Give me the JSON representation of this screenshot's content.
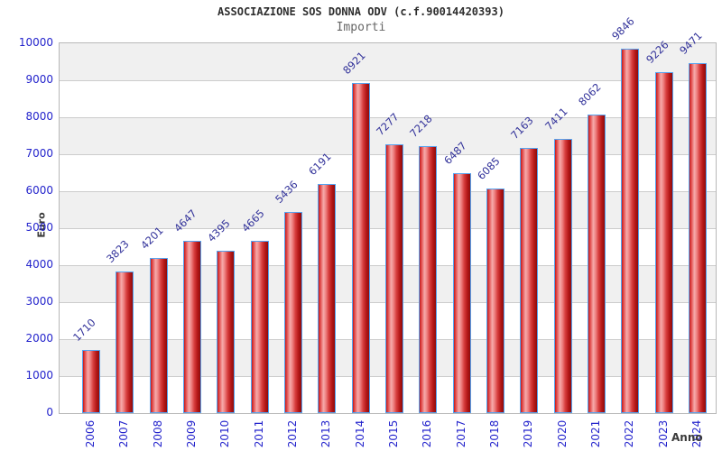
{
  "title": "ASSOCIAZIONE SOS DONNA ODV (c.f.90014420393)",
  "subtitle": "Importi",
  "chart_data": {
    "type": "bar",
    "title": "ASSOCIAZIONE SOS DONNA ODV (c.f.90014420393)",
    "subtitle": "Importi",
    "xlabel": "Anno",
    "ylabel": "Euro",
    "categories": [
      "2006",
      "2007",
      "2008",
      "2009",
      "2010",
      "2011",
      "2012",
      "2013",
      "2014",
      "2015",
      "2016",
      "2017",
      "2018",
      "2019",
      "2020",
      "2021",
      "2022",
      "2023",
      "2024"
    ],
    "values": [
      1710,
      3823,
      4201,
      4647,
      4395,
      4665,
      5436,
      6191,
      8921,
      7277,
      7218,
      6487,
      6085,
      7163,
      7411,
      8062,
      9846,
      9226,
      9471
    ],
    "ylim": [
      0,
      10000
    ],
    "ytick_step": 1000,
    "yticks": [
      0,
      1000,
      2000,
      3000,
      4000,
      5000,
      6000,
      7000,
      8000,
      9000,
      10000
    ],
    "grid": true,
    "bands_alternating": true,
    "legend": null
  },
  "colors": {
    "bar_fill_dark": "#b51818",
    "bar_fill_light": "#f6abab",
    "bar_stroke": "#55a3f0",
    "axis_tick_blue": "#2424cc",
    "value_label_navy": "#32329a",
    "band_gray": "#f0f0f0",
    "gridline_gray": "#cccccc",
    "plot_border": "#b8b8b8",
    "title_color": "#2e2e2e",
    "subtitle_color": "#666666",
    "axis_title_color": "#3a3a3a"
  }
}
